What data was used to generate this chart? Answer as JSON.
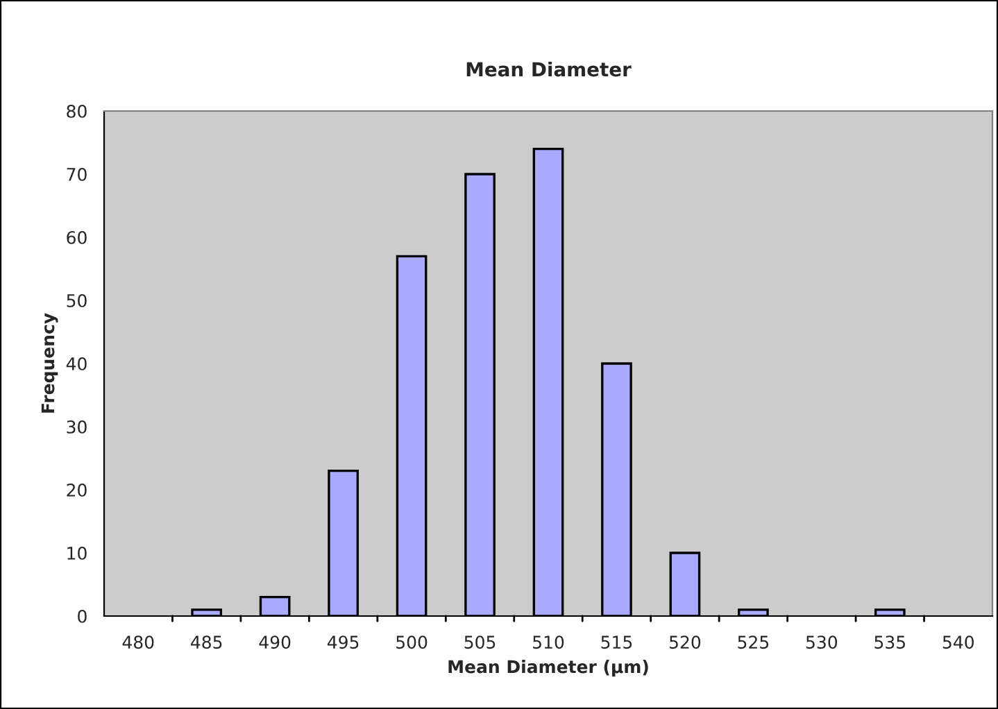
{
  "chart_data": {
    "type": "bar",
    "title": "Mean Diameter",
    "xlabel": "Mean Diameter (µm)",
    "ylabel": "Frequency",
    "categories": [
      "480",
      "485",
      "490",
      "495",
      "500",
      "505",
      "510",
      "515",
      "520",
      "525",
      "530",
      "535",
      "540"
    ],
    "values": [
      0,
      1,
      3,
      23,
      57,
      70,
      74,
      40,
      10,
      1,
      0,
      1,
      0
    ],
    "color": "#aaaaff",
    "ylim": [
      0,
      80
    ],
    "yticks": [
      0,
      10,
      20,
      30,
      40,
      50,
      60,
      70,
      80
    ],
    "legend": false
  }
}
